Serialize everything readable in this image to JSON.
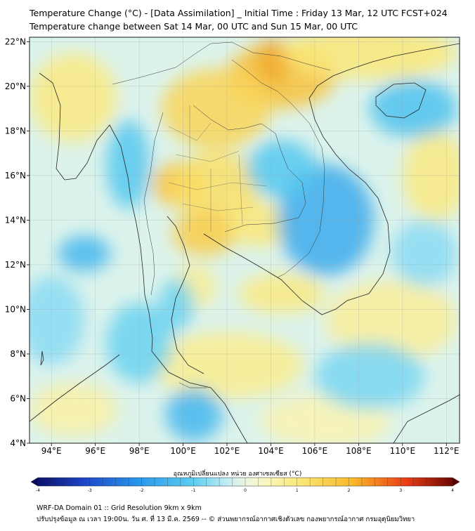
{
  "title_line1": "Temperature Change (°C) - [Data Assimilation] _ Initial Time : Friday 13 Mar, 12 UTC FCST+024",
  "title_line2": "Temperature change between Sat 14 Mar, 00 UTC and Sun 15 Mar, 00 UTC",
  "map": {
    "lon_range": [
      93,
      112.6
    ],
    "lat_range": [
      4,
      22.2
    ],
    "lon_ticks": [
      {
        "value": 94,
        "label": "94°E"
      },
      {
        "value": 96,
        "label": "96°E"
      },
      {
        "value": 98,
        "label": "98°E"
      },
      {
        "value": 100,
        "label": "100°E"
      },
      {
        "value": 102,
        "label": "102°E"
      },
      {
        "value": 104,
        "label": "104°E"
      },
      {
        "value": 106,
        "label": "106°E"
      },
      {
        "value": 108,
        "label": "108°E"
      },
      {
        "value": 110,
        "label": "110°E"
      },
      {
        "value": 112,
        "label": "112°E"
      }
    ],
    "lat_ticks": [
      {
        "value": 4,
        "label": "4°N"
      },
      {
        "value": 6,
        "label": "6°N"
      },
      {
        "value": 8,
        "label": "8°N"
      },
      {
        "value": 10,
        "label": "10°N"
      },
      {
        "value": 12,
        "label": "12°N"
      },
      {
        "value": 14,
        "label": "14°N"
      },
      {
        "value": 16,
        "label": "16°N"
      },
      {
        "value": 18,
        "label": "18°N"
      },
      {
        "value": 20,
        "label": "20°N"
      },
      {
        "value": 22,
        "label": "22°N"
      }
    ],
    "gridlines": true,
    "anomalies": [
      {
        "lon": 104.1,
        "lat": 21.1,
        "value": 3.2,
        "rx": 0.8,
        "ry": 1.0
      },
      {
        "lon": 104.5,
        "lat": 20.5,
        "value": 1.8,
        "rx": 2.5,
        "ry": 1.5
      },
      {
        "lon": 101.5,
        "lat": 19.0,
        "value": 1.4,
        "rx": 2.5,
        "ry": 1.8
      },
      {
        "lon": 99.8,
        "lat": 15.6,
        "value": 1.8,
        "rx": 1.2,
        "ry": 1.0
      },
      {
        "lon": 101.5,
        "lat": 15.5,
        "value": 1.2,
        "rx": 2.0,
        "ry": 1.6
      },
      {
        "lon": 101.0,
        "lat": 13.4,
        "value": 1.6,
        "rx": 1.5,
        "ry": 1.0
      },
      {
        "lon": 103.5,
        "lat": 13.8,
        "value": 1.0,
        "rx": 1.4,
        "ry": 1.0
      },
      {
        "lon": 104.5,
        "lat": 10.7,
        "value": 0.9,
        "rx": 2.0,
        "ry": 0.9
      },
      {
        "lon": 100.5,
        "lat": 11.0,
        "value": 0.8,
        "rx": 1.0,
        "ry": 1.0
      },
      {
        "lon": 95.0,
        "lat": 19.5,
        "value": 0.9,
        "rx": 2.0,
        "ry": 2.0
      },
      {
        "lon": 108.5,
        "lat": 21.5,
        "value": 1.0,
        "rx": 4.0,
        "ry": 1.2
      },
      {
        "lon": 111.5,
        "lat": 16.0,
        "value": 0.9,
        "rx": 1.5,
        "ry": 2.0
      },
      {
        "lon": 102.0,
        "lat": 7.5,
        "value": 0.8,
        "rx": 3.5,
        "ry": 1.5
      },
      {
        "lon": 109.5,
        "lat": 9.5,
        "value": 0.7,
        "rx": 3.0,
        "ry": 1.8
      },
      {
        "lon": 95.0,
        "lat": 5.5,
        "value": 0.6,
        "rx": 2.0,
        "ry": 1.2
      },
      {
        "lon": 106.5,
        "lat": 5.0,
        "value": 0.5,
        "rx": 3.0,
        "ry": 1.2
      },
      {
        "lon": 106.5,
        "lat": 14.0,
        "value": -1.6,
        "rx": 2.2,
        "ry": 2.5
      },
      {
        "lon": 104.5,
        "lat": 16.3,
        "value": -1.1,
        "rx": 1.6,
        "ry": 1.3
      },
      {
        "lon": 110.5,
        "lat": 19.0,
        "value": -1.2,
        "rx": 2.0,
        "ry": 1.3
      },
      {
        "lon": 95.5,
        "lat": 12.5,
        "value": -1.4,
        "rx": 1.2,
        "ry": 0.8
      },
      {
        "lon": 97.5,
        "lat": 16.5,
        "value": -1.1,
        "rx": 1.0,
        "ry": 2.0
      },
      {
        "lon": 100.5,
        "lat": 5.3,
        "value": -1.4,
        "rx": 1.3,
        "ry": 1.2
      },
      {
        "lon": 98.0,
        "lat": 8.5,
        "value": -0.9,
        "rx": 1.5,
        "ry": 1.8
      },
      {
        "lon": 99.7,
        "lat": 10.2,
        "value": -0.9,
        "rx": 0.8,
        "ry": 1.2
      },
      {
        "lon": 108.5,
        "lat": 7.0,
        "value": -0.8,
        "rx": 2.5,
        "ry": 1.5
      },
      {
        "lon": 94.0,
        "lat": 9.5,
        "value": -0.7,
        "rx": 1.5,
        "ry": 2.0
      },
      {
        "lon": 111.0,
        "lat": 12.5,
        "value": -0.7,
        "rx": 1.5,
        "ry": 1.5
      }
    ]
  },
  "colorbar": {
    "min": -4,
    "max": 4,
    "ticks": [
      {
        "value": -4,
        "label": "-4"
      },
      {
        "value": -3,
        "label": "-3"
      },
      {
        "value": -2,
        "label": "-2"
      },
      {
        "value": -1,
        "label": "-1"
      },
      {
        "value": 0,
        "label": "0"
      },
      {
        "value": 1,
        "label": "1"
      },
      {
        "value": 2,
        "label": "2"
      },
      {
        "value": 3,
        "label": "3"
      },
      {
        "value": 4,
        "label": "4"
      }
    ],
    "label": "อุณหภูมิเปลี่ยนแปลง หน่วย องศาเซลเซียส (°C)"
  },
  "footer_line1": "WRF-DA Domain 01 :: Grid Resolution 9km x 9km",
  "footer_line2": "ปรับปรุงข้อมูล ณ เวลา 19:00น. วัน ศ. ที่ 13 มี.ค. 2569 -- © ส่วนพยากรณ์อากาศเชิงตัวเลข กองพยากรณ์อากาศ กรมอุตุนิยมวิทยา"
}
